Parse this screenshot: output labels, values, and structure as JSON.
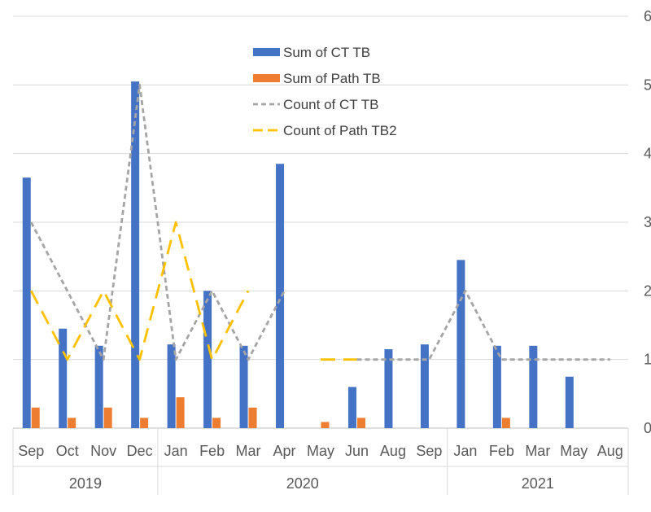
{
  "chart_data": {
    "type": "bar",
    "title": "",
    "xlabel": "",
    "ylabel": "",
    "ylim": [
      0,
      6
    ],
    "yticks": [
      "0",
      "1",
      "2",
      "3",
      "4",
      "5",
      "6"
    ],
    "grid": true,
    "legend_position": "top-center",
    "categories": [
      "Sep",
      "Oct",
      "Nov",
      "Dec",
      "Jan",
      "Feb",
      "Mar",
      "Apr",
      "May",
      "Jun",
      "Aug",
      "Sep",
      "Jan",
      "Feb",
      "Mar",
      "May",
      "Aug"
    ],
    "groups": [
      {
        "label": "2019",
        "start": 0,
        "end": 3
      },
      {
        "label": "2020",
        "start": 4,
        "end": 11
      },
      {
        "label": "2021",
        "start": 12,
        "end": 16
      }
    ],
    "series": [
      {
        "name": "Sum of CT TB",
        "kind": "bar",
        "color": "#4472C4",
        "values": [
          3.65,
          1.45,
          1.2,
          5.05,
          1.22,
          2.0,
          1.2,
          3.85,
          null,
          0.6,
          1.15,
          1.22,
          2.45,
          1.2,
          1.2,
          0.75,
          null
        ]
      },
      {
        "name": "Sum of Path TB",
        "kind": "bar",
        "color": "#ED7D31",
        "values": [
          0.3,
          0.15,
          0.3,
          0.15,
          0.45,
          0.15,
          0.3,
          null,
          0.09,
          0.15,
          null,
          null,
          null,
          0.15,
          null,
          null,
          null
        ]
      },
      {
        "name": "Count of CT TB",
        "kind": "line",
        "color": "#A5A5A5",
        "dash": "dot",
        "values": [
          3,
          2,
          1,
          5,
          1,
          2,
          1,
          2,
          null,
          1,
          1,
          1,
          2,
          1,
          1,
          1,
          1
        ]
      },
      {
        "name": "Count of Path TB2",
        "kind": "line",
        "color": "#FFC000",
        "dash": "long",
        "values": [
          2,
          1,
          2,
          1,
          3,
          1,
          2,
          null,
          1,
          1,
          null,
          null,
          null,
          null,
          null,
          null,
          null
        ]
      }
    ]
  }
}
